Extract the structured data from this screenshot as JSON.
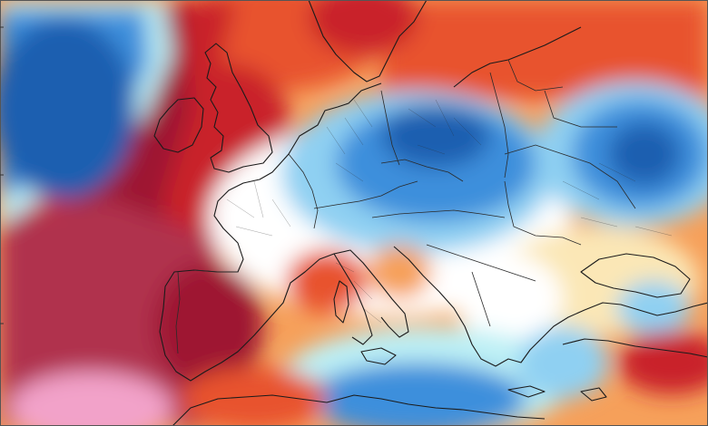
{
  "map": {
    "region": "Europe",
    "field": "anomaly",
    "palette": {
      "dark_blue": "#1f5fb0",
      "blue": "#3d8fdc",
      "light_blue": "#8fd0f2",
      "cyan": "#bdf0f5",
      "neutral": "#ffffff",
      "pale_yellow": "#fbe7b6",
      "orange": "#f6a05a",
      "red_orange": "#e8522e",
      "red": "#c9232a",
      "dark_red": "#9e1632",
      "crimson": "#b0304e",
      "pink": "#f2a2c9"
    },
    "features": {
      "coastline_color": "#1b1b1b",
      "border_color": "#2a2a2a"
    }
  }
}
